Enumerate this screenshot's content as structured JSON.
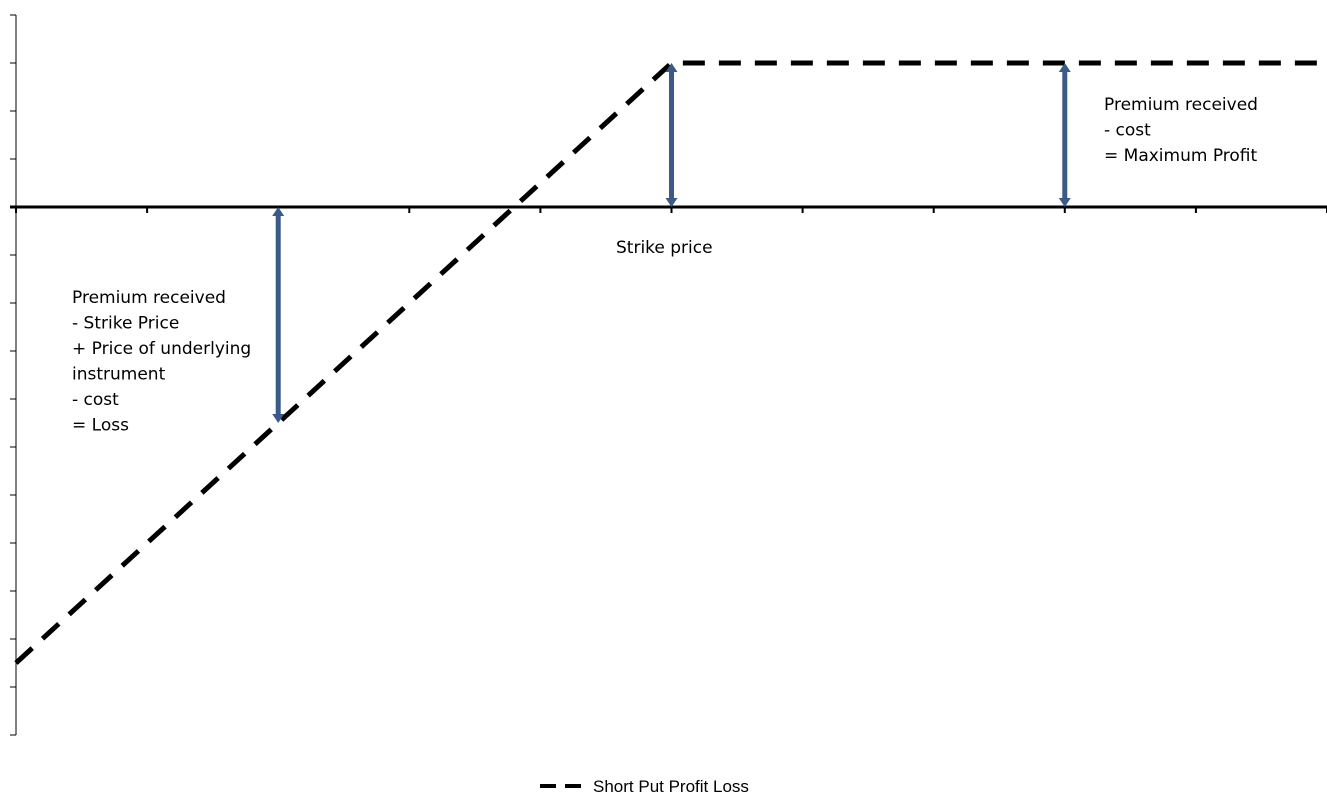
{
  "chart_data": {
    "type": "line",
    "title": "",
    "xlabel": "",
    "ylabel": "",
    "xlim": [
      0,
      10
    ],
    "ylim": [
      -11,
      4
    ],
    "grid": false,
    "legend_placement": "bottom-center",
    "series": [
      {
        "name": "Short Put Profit Loss",
        "style": "dashed",
        "color": "#000000",
        "x": [
          0,
          5,
          10
        ],
        "y": [
          -9.5,
          3,
          3
        ]
      }
    ],
    "annotations": {
      "strike": {
        "text": "Strike price"
      },
      "max_profit": {
        "lines": [
          "Premium received",
          "- cost",
          "= Maximum Profit"
        ]
      },
      "loss": {
        "lines": [
          "Premium received",
          "- Strike Price",
          "+ Price of underlying",
          "instrument",
          "- cost",
          "= Loss"
        ]
      }
    },
    "arrows": [
      {
        "x": 5,
        "y1": 0,
        "y2": 3
      },
      {
        "x": 8,
        "y1": 0,
        "y2": 3
      },
      {
        "x": 2,
        "y1": 0,
        "y2": -4.5
      }
    ],
    "arrow_color": "#3a5a89"
  }
}
